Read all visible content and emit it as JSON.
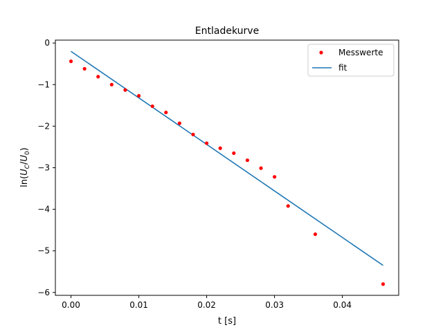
{
  "chart_data": {
    "type": "scatter",
    "title": "Entladekurve",
    "xlabel": "t [s]",
    "ylabel": "ln(U_C/U_0)",
    "xlim": [
      -0.0023,
      0.0483
    ],
    "ylim": [
      -6.07,
      0.07
    ],
    "xticks": [
      0.0,
      0.01,
      0.02,
      0.03,
      0.04
    ],
    "xtick_labels": [
      "0.00",
      "0.01",
      "0.02",
      "0.03",
      "0.04"
    ],
    "yticks": [
      0,
      -1,
      -2,
      -3,
      -4,
      -5,
      -6
    ],
    "ytick_labels": [
      "0",
      "−1",
      "−2",
      "−3",
      "−4",
      "−5",
      "−6"
    ],
    "legend_position": "top-right",
    "series": [
      {
        "name": "Messwerte",
        "kind": "points",
        "color": "#ff0000",
        "x": [
          0.0,
          0.002,
          0.004,
          0.006,
          0.008,
          0.01,
          0.012,
          0.014,
          0.016,
          0.018,
          0.02,
          0.022,
          0.024,
          0.026,
          0.028,
          0.03,
          0.032,
          0.036,
          0.046
        ],
        "y": [
          -0.44,
          -0.62,
          -0.81,
          -1.0,
          -1.13,
          -1.27,
          -1.52,
          -1.67,
          -1.93,
          -2.2,
          -2.41,
          -2.53,
          -2.65,
          -2.82,
          -3.01,
          -3.22,
          -3.92,
          -4.6,
          -5.8
        ]
      },
      {
        "name": "fit",
        "kind": "line",
        "color": "#1f77b4",
        "x": [
          0.0,
          0.046
        ],
        "y": [
          -0.2,
          -5.35
        ]
      }
    ]
  }
}
